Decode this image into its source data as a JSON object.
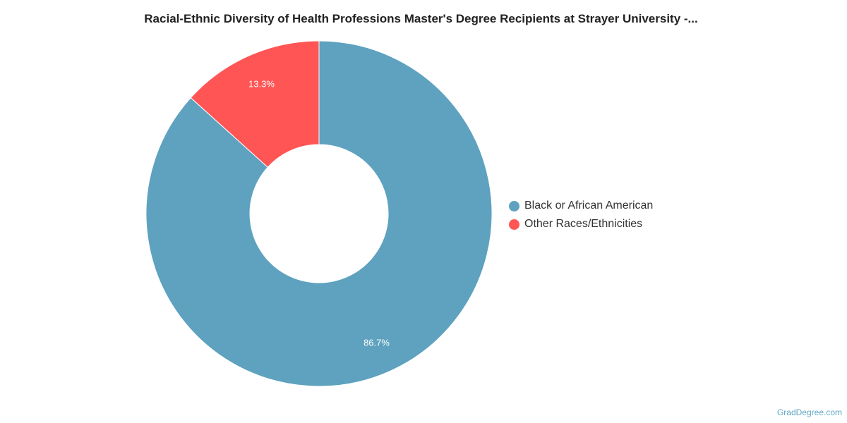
{
  "chart_data": {
    "type": "pie",
    "title": "Racial-Ethnic Diversity of Health Professions Master's Degree Recipients at Strayer University -...",
    "donut": true,
    "categories": [
      "Black or African American",
      "Other Races/Ethnicities"
    ],
    "values": [
      86.7,
      13.3
    ],
    "data_labels": [
      "86.7%",
      "13.3%"
    ],
    "colors": [
      "#5ea2bf",
      "#ff5555"
    ],
    "legend": {
      "placement": "right",
      "items": [
        {
          "label": "Black or African American",
          "color": "#5ea2bf"
        },
        {
          "label": "Other Races/Ethnicities",
          "color": "#ff5555"
        }
      ]
    }
  },
  "credit": "GradDegree.com"
}
